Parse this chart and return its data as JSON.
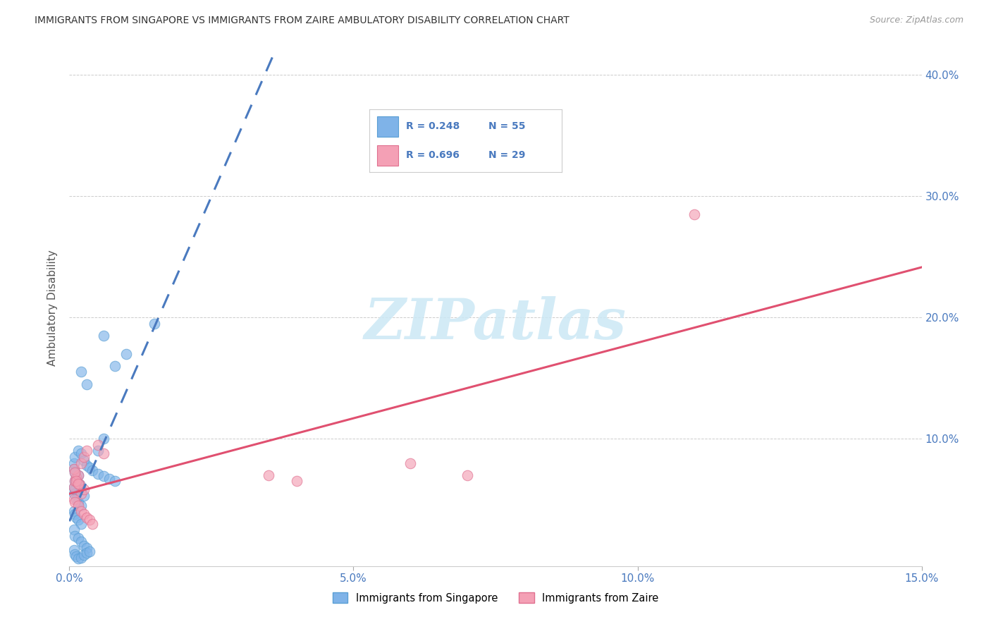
{
  "title": "IMMIGRANTS FROM SINGAPORE VS IMMIGRANTS FROM ZAIRE AMBULATORY DISABILITY CORRELATION CHART",
  "source": "Source: ZipAtlas.com",
  "ylabel": "Ambulatory Disability",
  "xlim": [
    0.0,
    0.15
  ],
  "ylim": [
    -0.005,
    0.42
  ],
  "xticks": [
    0.0,
    0.05,
    0.1,
    0.15
  ],
  "yticks": [
    0.1,
    0.2,
    0.3,
    0.4
  ],
  "xtick_labels": [
    "0.0%",
    "5.0%",
    "10.0%",
    "15.0%"
  ],
  "ytick_labels": [
    "10.0%",
    "20.0%",
    "30.0%",
    "40.0%"
  ],
  "singapore_color": "#7fb3e8",
  "singapore_edge_color": "#5a9fd4",
  "zaire_color": "#f4a0b5",
  "zaire_edge_color": "#e07090",
  "singapore_R": 0.248,
  "singapore_N": 55,
  "zaire_R": 0.696,
  "zaire_N": 29,
  "singapore_line_color": "#4a7abf",
  "zaire_line_color": "#e05070",
  "background_color": "#ffffff",
  "grid_color": "#cccccc",
  "tick_color": "#4a7abf",
  "title_color": "#333333",
  "source_color": "#999999",
  "watermark_color": "#cce8f5",
  "singapore_x": [
    0.0008,
    0.001,
    0.0012,
    0.0015,
    0.0018,
    0.0008,
    0.001,
    0.0012,
    0.0015,
    0.002,
    0.0008,
    0.001,
    0.0012,
    0.0015,
    0.002,
    0.0025,
    0.0008,
    0.001,
    0.0015,
    0.002,
    0.0025,
    0.003,
    0.0035,
    0.004,
    0.005,
    0.006,
    0.007,
    0.008,
    0.0008,
    0.001,
    0.0012,
    0.0015,
    0.002,
    0.0008,
    0.001,
    0.0015,
    0.002,
    0.0025,
    0.003,
    0.0008,
    0.001,
    0.0012,
    0.0015,
    0.002,
    0.0025,
    0.003,
    0.0035,
    0.006,
    0.002,
    0.003,
    0.005,
    0.006,
    0.008,
    0.01,
    0.015
  ],
  "singapore_y": [
    0.06,
    0.065,
    0.068,
    0.07,
    0.062,
    0.055,
    0.058,
    0.05,
    0.048,
    0.045,
    0.075,
    0.072,
    0.065,
    0.063,
    0.058,
    0.053,
    0.08,
    0.085,
    0.09,
    0.088,
    0.082,
    0.078,
    0.076,
    0.074,
    0.071,
    0.069,
    0.067,
    0.065,
    0.04,
    0.038,
    0.035,
    0.033,
    0.03,
    0.025,
    0.02,
    0.018,
    0.015,
    0.012,
    0.01,
    0.008,
    0.005,
    0.003,
    0.001,
    0.002,
    0.004,
    0.006,
    0.007,
    0.1,
    0.155,
    0.145,
    0.09,
    0.185,
    0.16,
    0.17,
    0.195
  ],
  "zaire_x": [
    0.0008,
    0.001,
    0.0012,
    0.0015,
    0.0018,
    0.002,
    0.0025,
    0.0008,
    0.001,
    0.0012,
    0.0015,
    0.002,
    0.0025,
    0.003,
    0.0008,
    0.001,
    0.0015,
    0.002,
    0.0025,
    0.003,
    0.0035,
    0.004,
    0.005,
    0.006,
    0.035,
    0.04,
    0.06,
    0.11,
    0.07
  ],
  "zaire_y": [
    0.06,
    0.065,
    0.068,
    0.07,
    0.062,
    0.055,
    0.058,
    0.075,
    0.072,
    0.065,
    0.063,
    0.08,
    0.085,
    0.09,
    0.05,
    0.048,
    0.045,
    0.04,
    0.038,
    0.035,
    0.033,
    0.03,
    0.095,
    0.088,
    0.07,
    0.065,
    0.08,
    0.285,
    0.07
  ]
}
